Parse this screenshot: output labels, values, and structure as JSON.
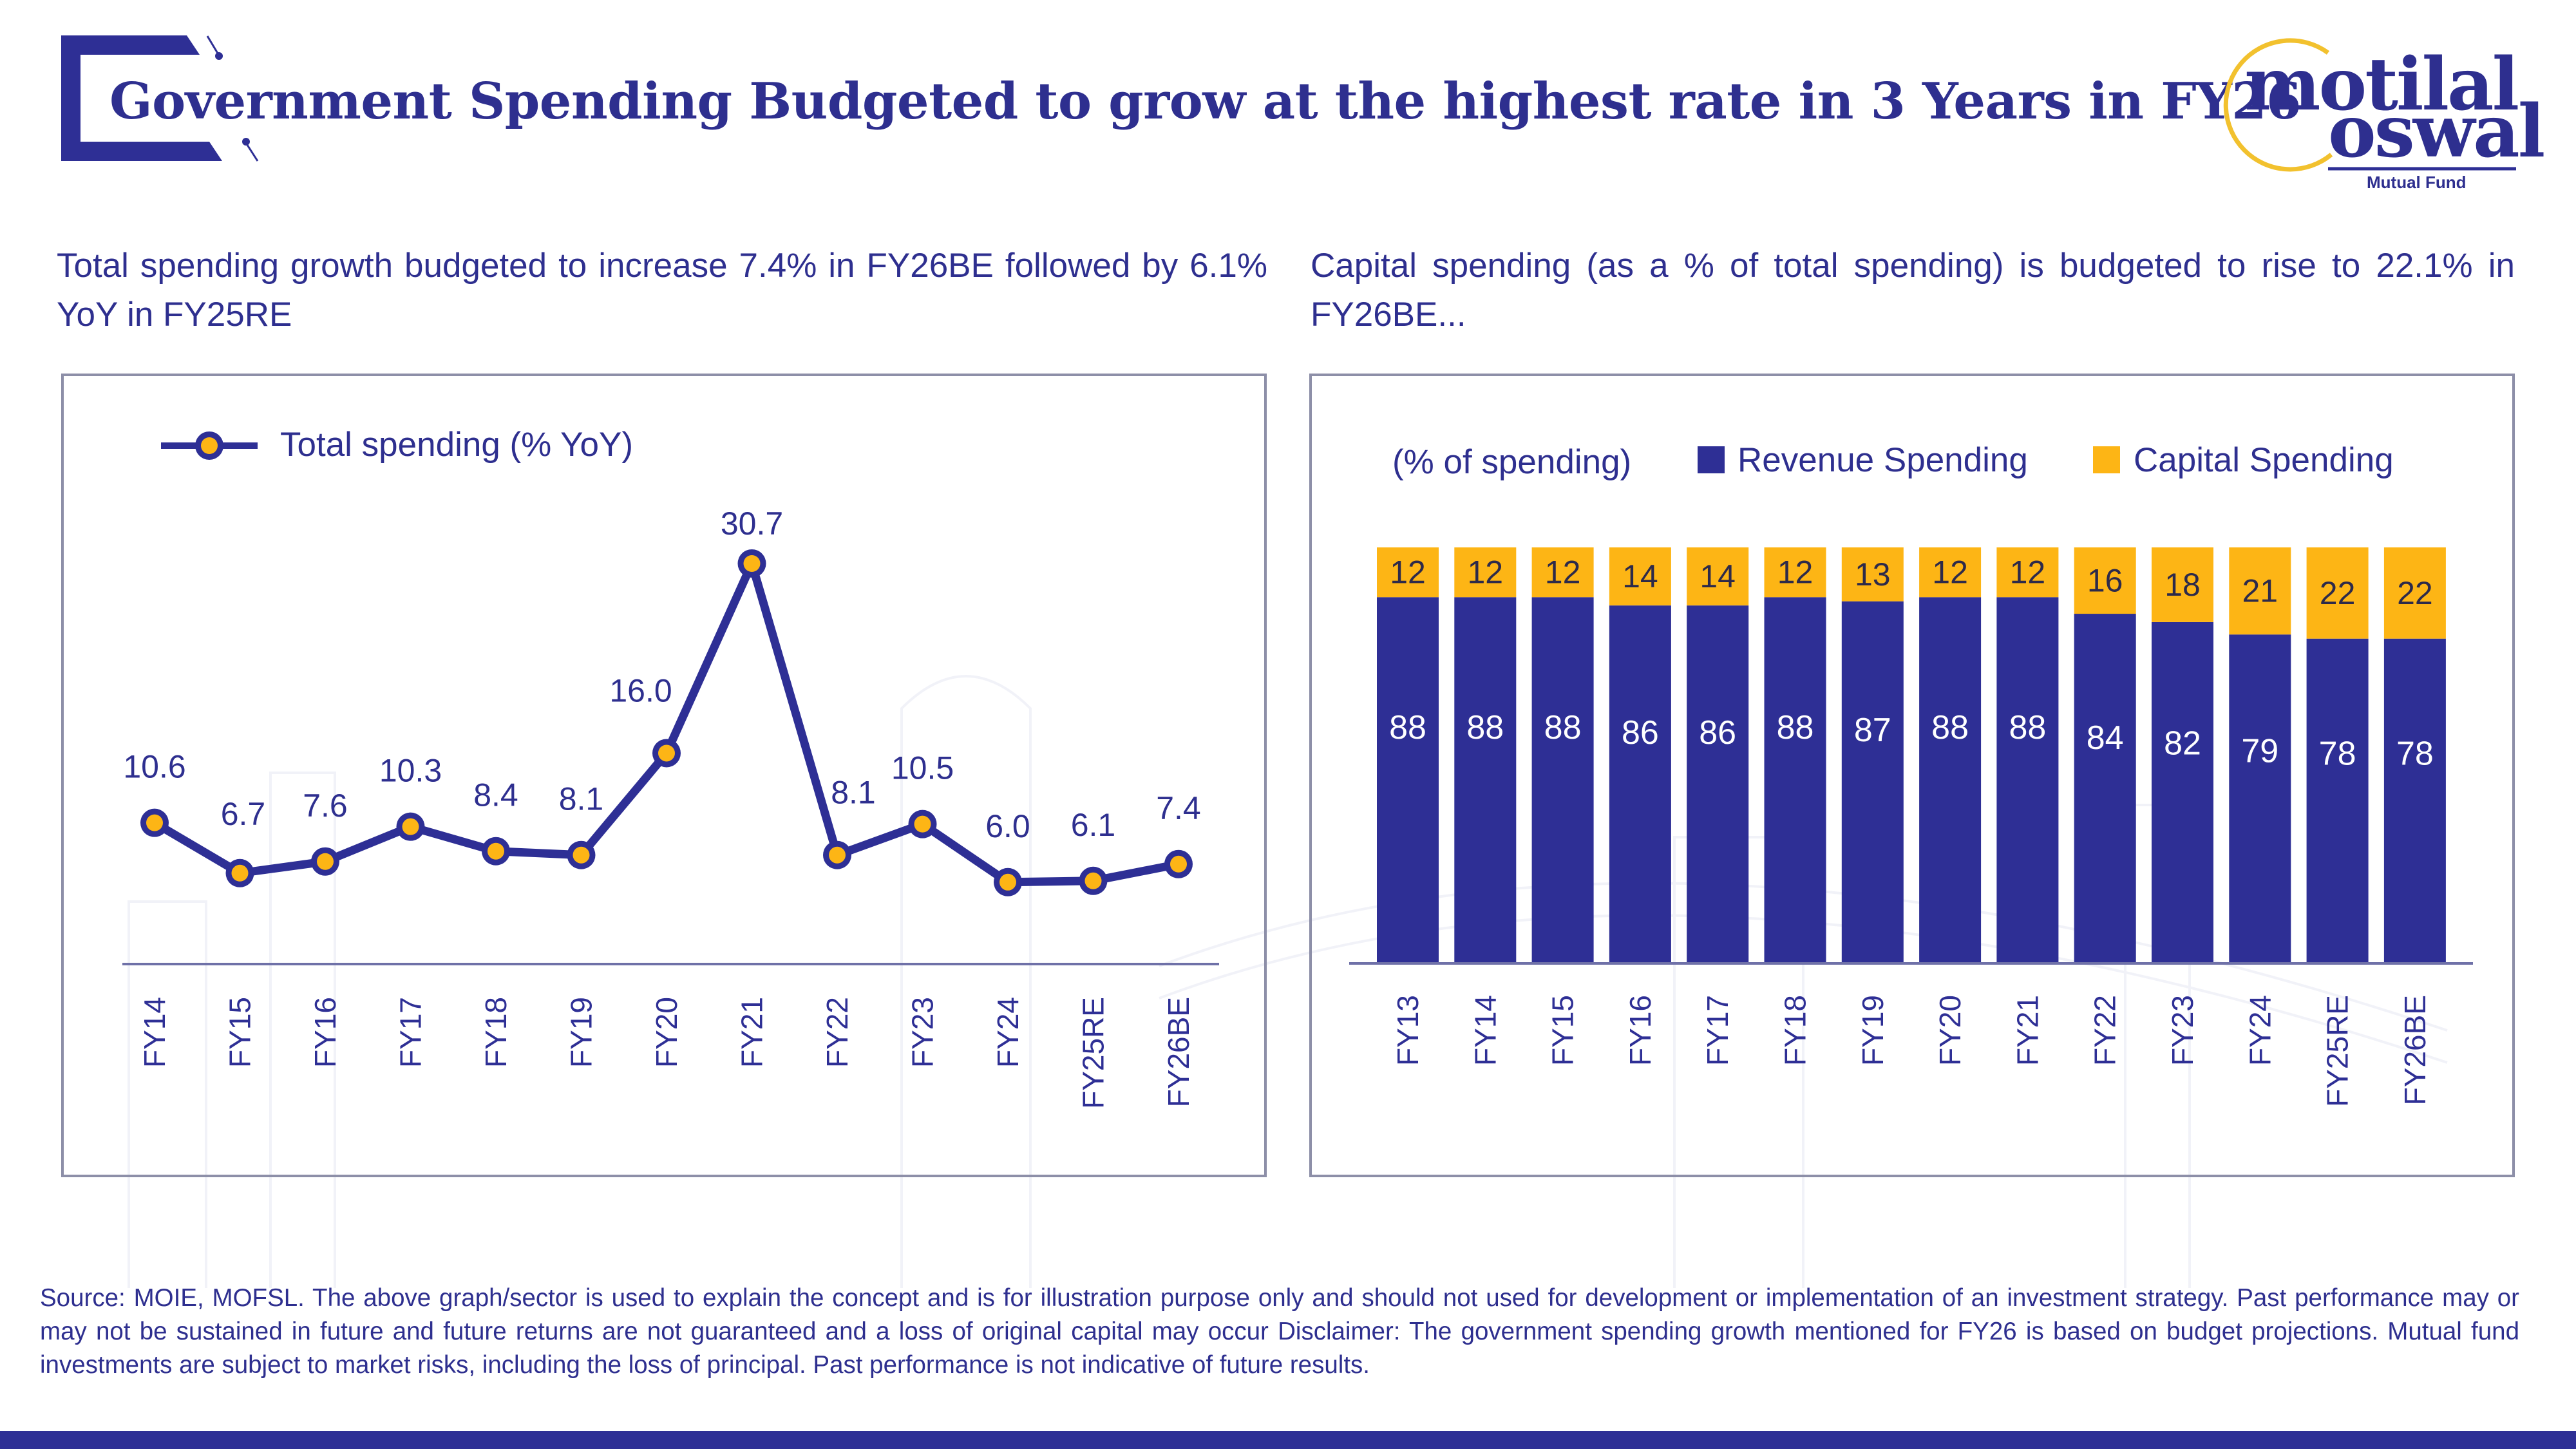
{
  "header": {
    "title": "Government Spending Budgeted to grow at the highest rate in 3 Years in FY26"
  },
  "logo": {
    "line1": "motilal",
    "line2": "oswal",
    "sub": "Mutual Fund"
  },
  "colors": {
    "navy": "#2e2f95",
    "gold": "#fdb515",
    "text": "#2e2f8f",
    "panel_border": "#8d8fa8"
  },
  "left_panel": {
    "subtitle": "Total spending growth budgeted to increase 7.4% in FY26BE followed by 6.1% YoY in FY25RE"
  },
  "right_panel": {
    "subtitle": "Capital spending (as a % of total spending) is budgeted to rise to 22.1% in FY26BE..."
  },
  "chart_data": [
    {
      "type": "line",
      "title": "",
      "legend": [
        "Total spending (% YoY)"
      ],
      "legend_position": "top-left",
      "categories": [
        "FY14",
        "FY15",
        "FY16",
        "FY17",
        "FY18",
        "FY19",
        "FY20",
        "FY21",
        "FY22",
        "FY23",
        "FY24",
        "FY25RE",
        "FY26BE"
      ],
      "series": [
        {
          "name": "Total spending (% YoY)",
          "values": [
            10.6,
            6.7,
            7.6,
            10.3,
            8.4,
            8.1,
            16.0,
            30.7,
            8.1,
            10.5,
            6.0,
            6.1,
            7.4
          ],
          "labels": [
            "10.6",
            "6.7",
            "7.6",
            "10.3",
            "8.4",
            "8.1",
            "16.0",
            "30.7",
            "8.1",
            "10.5",
            "6.0",
            "6.1",
            "7.4"
          ]
        }
      ],
      "xlabel": "",
      "ylabel": "",
      "ylim": [
        0,
        32
      ],
      "grid": false,
      "y_axis_visible": false
    },
    {
      "type": "bar",
      "stacked": true,
      "title": "",
      "unit_label": "(% of spending)",
      "legend": [
        "Revenue Spending",
        "Capital Spending"
      ],
      "legend_position": "top",
      "categories": [
        "FY13",
        "FY14",
        "FY15",
        "FY16",
        "FY17",
        "FY18",
        "FY19",
        "FY20",
        "FY21",
        "FY22",
        "FY23",
        "FY24",
        "FY25RE",
        "FY26BE"
      ],
      "series": [
        {
          "name": "Revenue Spending",
          "values": [
            88,
            88,
            88,
            86,
            86,
            88,
            87,
            88,
            88,
            84,
            82,
            79,
            78,
            78
          ]
        },
        {
          "name": "Capital Spending",
          "values": [
            12,
            12,
            12,
            14,
            14,
            12,
            13,
            12,
            12,
            16,
            18,
            21,
            22,
            22
          ]
        }
      ],
      "xlabel": "",
      "ylabel": "",
      "ylim": [
        0,
        100
      ],
      "grid": false,
      "y_axis_visible": false
    }
  ],
  "footer": {
    "disclaimer": "Source: MOIE, MOFSL. The above graph/sector is used to explain the concept and is for illustration purpose only and should not used for development or implementation of an investment strategy. Past performance may or may not be sustained in future and future returns are not guaranteed and a loss of original capital may occur Disclaimer: The government spending growth mentioned for FY26 is based on budget projections. Mutual fund investments are subject to market risks, including the loss of principal. Past performance is not indicative of future results."
  }
}
